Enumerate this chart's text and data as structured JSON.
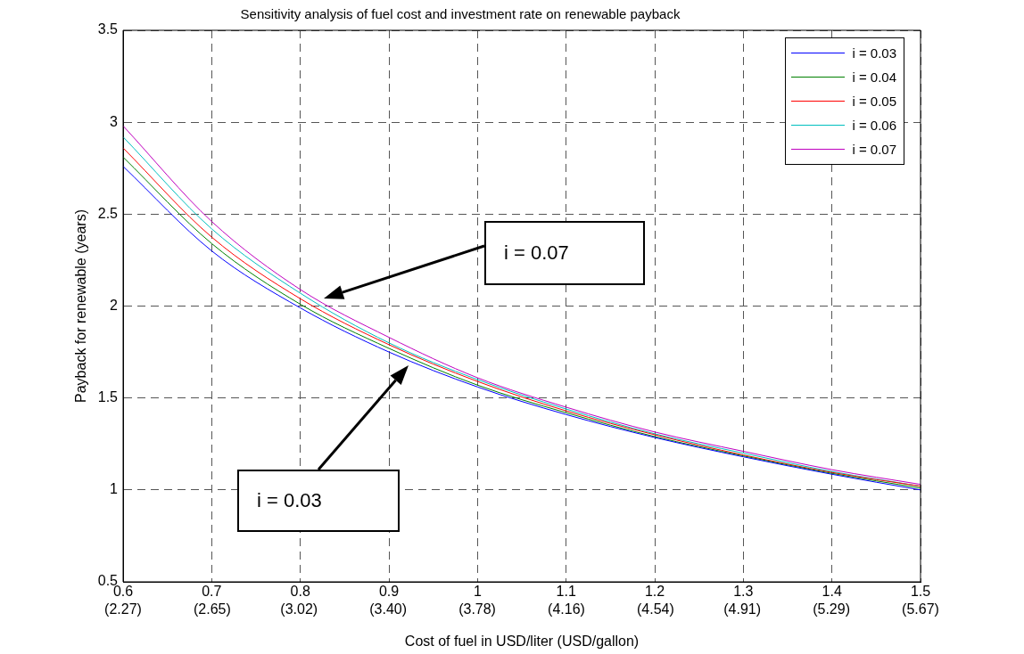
{
  "chart_data": {
    "type": "line",
    "title": "Sensitivity analysis of fuel cost and investment rate on renewable payback",
    "xlabel": "Cost of fuel in USD/liter (USD/gallon)",
    "ylabel": "Payback for renewable (years)",
    "x": [
      0.6,
      0.7,
      0.8,
      0.9,
      1.0,
      1.1,
      1.2,
      1.3,
      1.4,
      1.5
    ],
    "series": [
      {
        "name": "i = 0.03",
        "color": "#0000ff",
        "values": [
          2.76,
          2.3,
          1.99,
          1.75,
          1.56,
          1.41,
          1.285,
          1.18,
          1.085,
          1.0
        ]
      },
      {
        "name": "i = 0.04",
        "color": "#008000",
        "values": [
          2.81,
          2.34,
          2.01,
          1.77,
          1.57,
          1.42,
          1.29,
          1.185,
          1.09,
          1.01
        ]
      },
      {
        "name": "i = 0.05",
        "color": "#ff0000",
        "values": [
          2.86,
          2.375,
          2.04,
          1.79,
          1.59,
          1.43,
          1.3,
          1.19,
          1.095,
          1.02
        ]
      },
      {
        "name": "i = 0.06",
        "color": "#00bfbf",
        "values": [
          2.92,
          2.42,
          2.07,
          1.8,
          1.6,
          1.44,
          1.305,
          1.2,
          1.1,
          1.02
        ]
      },
      {
        "name": "i = 0.07",
        "color": "#bf00bf",
        "values": [
          2.98,
          2.46,
          2.09,
          1.83,
          1.61,
          1.45,
          1.315,
          1.21,
          1.11,
          1.03
        ]
      }
    ],
    "xlim": [
      0.6,
      1.5
    ],
    "xticks": [
      0.6,
      0.7,
      0.8,
      0.9,
      1,
      1.1,
      1.2,
      1.3,
      1.4,
      1.5
    ],
    "x2lim": [
      2.27,
      5.67
    ],
    "x2ticks": [
      {
        "value": 2.27,
        "label": "(2.27)"
      },
      {
        "value": 2.65,
        "label": "(2.65)"
      },
      {
        "value": 3.02,
        "label": "(3.02)"
      },
      {
        "value": 3.4,
        "label": "(3.40)"
      },
      {
        "value": 3.78,
        "label": "(3.78)"
      },
      {
        "value": 4.16,
        "label": "(4.16)"
      },
      {
        "value": 4.54,
        "label": "(4.54)"
      },
      {
        "value": 4.91,
        "label": "(4.91)"
      },
      {
        "value": 5.29,
        "label": "(5.29)"
      },
      {
        "value": 5.67,
        "label": "(5.67)"
      }
    ],
    "ylim": [
      0.5,
      3.5
    ],
    "yticks": [
      0.5,
      1,
      1.5,
      2,
      2.5,
      3,
      3.5
    ],
    "annotations": [
      "i = 0.07",
      "i = 0.03"
    ],
    "grid": true,
    "legend": "top right",
    "marker": "none",
    "line_style": "solid"
  }
}
